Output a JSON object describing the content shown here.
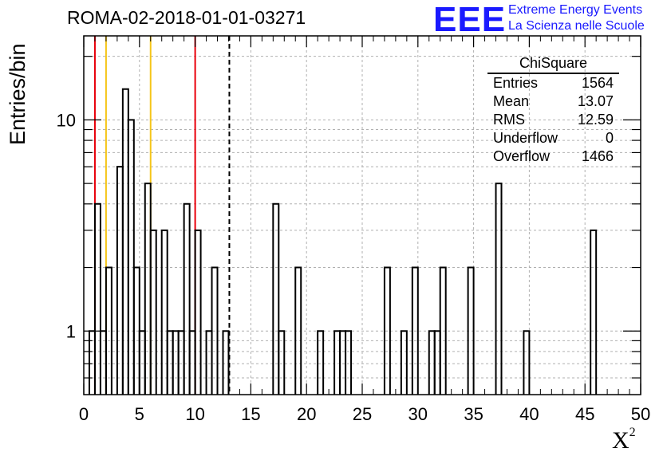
{
  "title": "ROMA-02-2018-01-01-03271",
  "logo": {
    "mark": "EEE",
    "line1": "Extreme Energy Events",
    "line2": "La Scienza nelle Scuole"
  },
  "stats_box": {
    "title": "ChiSquare",
    "rows": [
      {
        "label": "Entries",
        "value": "1564"
      },
      {
        "label": "Mean",
        "value": "13.07"
      },
      {
        "label": "RMS",
        "value": "12.59"
      },
      {
        "label": "Underflow",
        "value": "0"
      },
      {
        "label": "Overflow",
        "value": "1466"
      }
    ]
  },
  "colors": {
    "red_line": "#e8000b",
    "yellow_line": "#f5c518",
    "grid": "#b0b0b0",
    "histogram": "#000000"
  },
  "chart_data": {
    "type": "histogram",
    "title": "ROMA-02-2018-01-01-03271",
    "xlabel": "X",
    "xlabel_superscript": "2",
    "ylabel": "Entries/bin",
    "xlim": [
      0,
      50
    ],
    "ylim": [
      0.5,
      25
    ],
    "y_scale": "log",
    "bin_width": 0.5,
    "x_ticks": [
      0,
      5,
      10,
      15,
      20,
      25,
      30,
      35,
      40,
      45,
      50
    ],
    "y_tick_labels": [
      {
        "value": 1,
        "label": "1"
      },
      {
        "value": 10,
        "label": "10"
      }
    ],
    "grid": true,
    "bins": [
      {
        "x": 0.5,
        "count": 1
      },
      {
        "x": 1.0,
        "count": 4
      },
      {
        "x": 1.5,
        "count": 1
      },
      {
        "x": 2.0,
        "count": 2
      },
      {
        "x": 3.0,
        "count": 6
      },
      {
        "x": 3.5,
        "count": 14
      },
      {
        "x": 4.0,
        "count": 10
      },
      {
        "x": 4.5,
        "count": 2
      },
      {
        "x": 5.0,
        "count": 1
      },
      {
        "x": 5.5,
        "count": 5
      },
      {
        "x": 6.0,
        "count": 3
      },
      {
        "x": 7.0,
        "count": 3
      },
      {
        "x": 7.5,
        "count": 1
      },
      {
        "x": 8.0,
        "count": 1
      },
      {
        "x": 8.5,
        "count": 1
      },
      {
        "x": 9.0,
        "count": 4
      },
      {
        "x": 9.5,
        "count": 1
      },
      {
        "x": 10.0,
        "count": 3
      },
      {
        "x": 11.0,
        "count": 1
      },
      {
        "x": 11.5,
        "count": 2
      },
      {
        "x": 12.5,
        "count": 1
      },
      {
        "x": 17.0,
        "count": 4
      },
      {
        "x": 17.5,
        "count": 1
      },
      {
        "x": 19.0,
        "count": 2
      },
      {
        "x": 21.0,
        "count": 1
      },
      {
        "x": 22.5,
        "count": 1
      },
      {
        "x": 23.0,
        "count": 1
      },
      {
        "x": 23.5,
        "count": 1
      },
      {
        "x": 27.0,
        "count": 2
      },
      {
        "x": 28.5,
        "count": 1
      },
      {
        "x": 29.5,
        "count": 2
      },
      {
        "x": 31.0,
        "count": 1
      },
      {
        "x": 31.5,
        "count": 1
      },
      {
        "x": 32.0,
        "count": 2
      },
      {
        "x": 34.5,
        "count": 2
      },
      {
        "x": 37.0,
        "count": 5
      },
      {
        "x": 39.5,
        "count": 1
      },
      {
        "x": 45.5,
        "count": 3
      }
    ],
    "vertical_lines": [
      {
        "x": 1.0,
        "style": "solid",
        "color": "red"
      },
      {
        "x": 2.0,
        "style": "solid",
        "color": "yellow"
      },
      {
        "x": 6.0,
        "style": "solid",
        "color": "yellow"
      },
      {
        "x": 10.0,
        "style": "solid",
        "color": "red"
      },
      {
        "x": 13.07,
        "style": "dashed",
        "color": "black"
      }
    ]
  }
}
